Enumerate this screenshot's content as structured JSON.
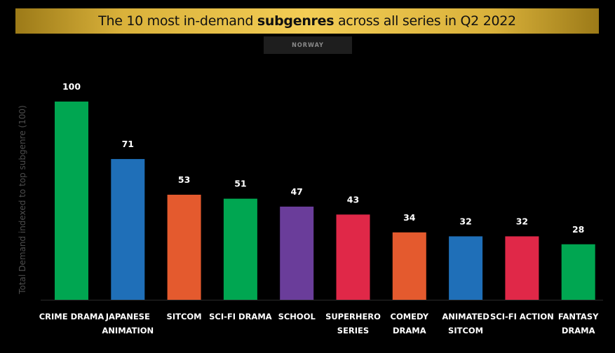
{
  "header": {
    "title_prefix": "The 10 most in-demand ",
    "title_bold": "subgenres",
    "title_suffix": " across all series in Q2 2022",
    "region": "NORWAY"
  },
  "chart_data": {
    "type": "bar",
    "title": "The 10 most in-demand subgenres across all series in Q2 2022",
    "subtitle": "NORWAY",
    "ylabel": "Total Demand indexed to top subgenre (100)",
    "xlabel": "",
    "ylim": [
      0,
      100
    ],
    "grid": false,
    "categories": [
      [
        "CRIME DRAMA"
      ],
      [
        "JAPANESE",
        "ANIMATION"
      ],
      [
        "SITCOM"
      ],
      [
        "SCI-FI DRAMA"
      ],
      [
        "SCHOOL"
      ],
      [
        "SUPERHERO",
        "SERIES"
      ],
      [
        "COMEDY",
        "DRAMA"
      ],
      [
        "ANIMATED",
        "SITCOM"
      ],
      [
        "SCI-FI ACTION"
      ],
      [
        "FANTASY",
        "DRAMA"
      ]
    ],
    "values": [
      100,
      71,
      53,
      51,
      47,
      43,
      34,
      32,
      32,
      28
    ],
    "colors": [
      "#00a651",
      "#1f6fb8",
      "#e45a2e",
      "#00a651",
      "#6a3d9a",
      "#e02848",
      "#e45a2e",
      "#1f6fb8",
      "#e02848",
      "#00a651"
    ]
  }
}
